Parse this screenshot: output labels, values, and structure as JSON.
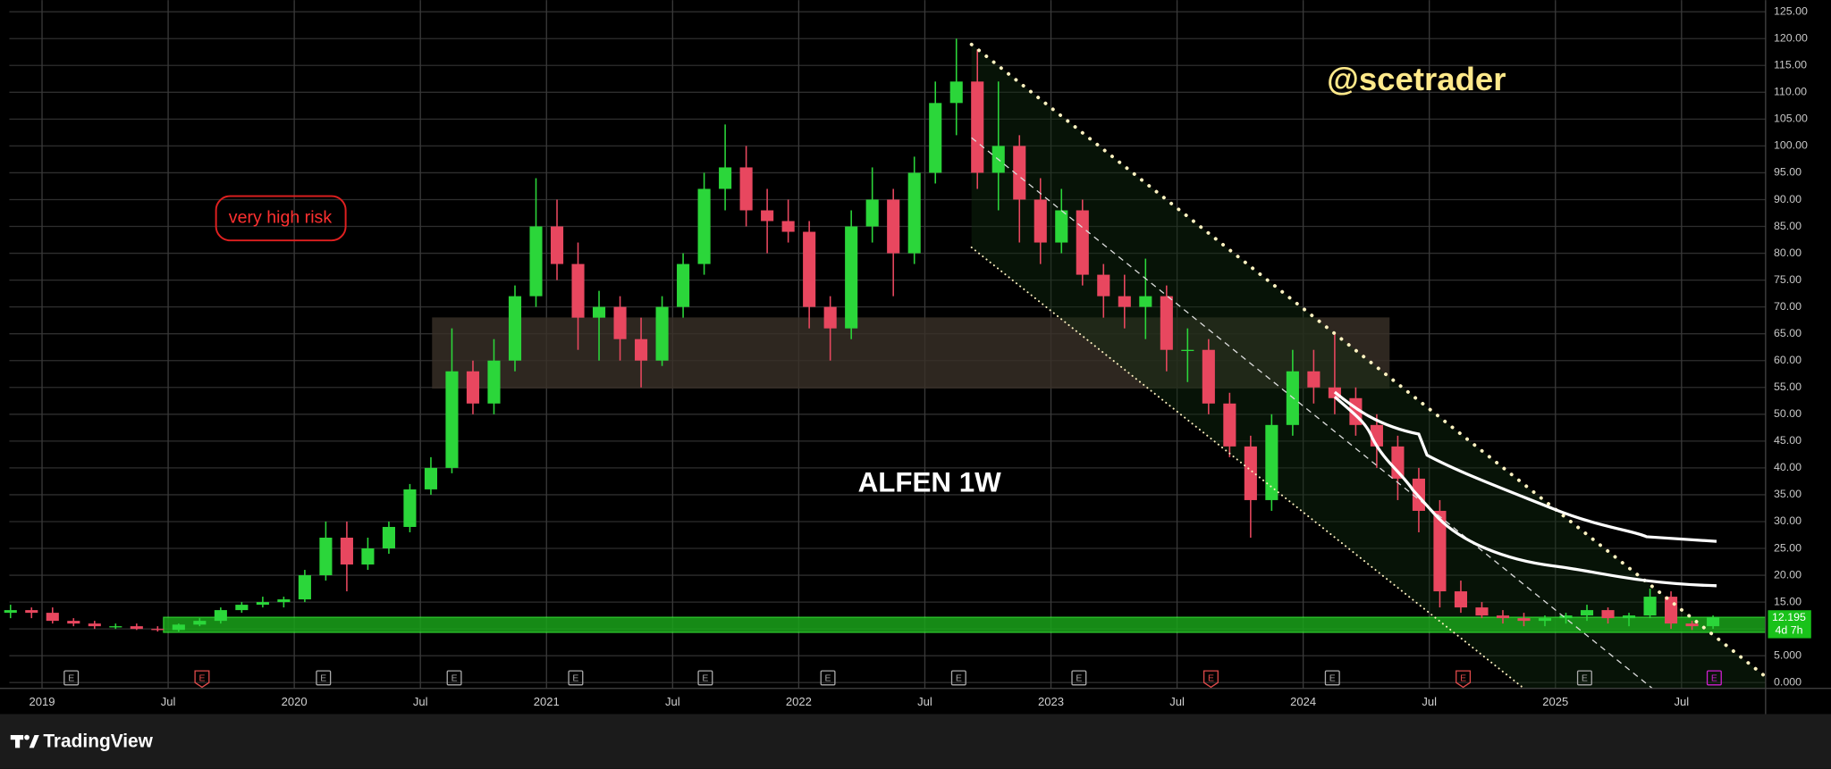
{
  "chart_data": {
    "type": "candlestick",
    "title": "ALFEN 1W",
    "watermark": "@scetrader",
    "annotation": "very high risk",
    "x": [
      "2018-11",
      "2018-12",
      "2019-01",
      "2019-02",
      "2019-03",
      "2019-04",
      "2019-05",
      "2019-06",
      "2019-07",
      "2019-08",
      "2019-09",
      "2019-10",
      "2019-11",
      "2019-12",
      "2020-01",
      "2020-02",
      "2020-03",
      "2020-04",
      "2020-05",
      "2020-06",
      "2020-07",
      "2020-08",
      "2020-09",
      "2020-10",
      "2020-11",
      "2020-12",
      "2021-01",
      "2021-02",
      "2021-03",
      "2021-04",
      "2021-05",
      "2021-06",
      "2021-07",
      "2021-08",
      "2021-09",
      "2021-10",
      "2021-11",
      "2021-12",
      "2022-01",
      "2022-02",
      "2022-03",
      "2022-04",
      "2022-05",
      "2022-06",
      "2022-07",
      "2022-08",
      "2022-09",
      "2022-10",
      "2022-11",
      "2022-12",
      "2023-01",
      "2023-02",
      "2023-03",
      "2023-04",
      "2023-05",
      "2023-06",
      "2023-07",
      "2023-08",
      "2023-09",
      "2023-10",
      "2023-11",
      "2023-12",
      "2024-01",
      "2024-02",
      "2024-03",
      "2024-04",
      "2024-05",
      "2024-06",
      "2024-07",
      "2024-08",
      "2024-09",
      "2024-10",
      "2024-11",
      "2024-12",
      "2025-01",
      "2025-02",
      "2025-03",
      "2025-04",
      "2025-05",
      "2025-06",
      "2025-07",
      "2025-08"
    ],
    "open": [
      13,
      13.5,
      13,
      11.5,
      11,
      10.5,
      10.5,
      10,
      9.8,
      10.8,
      11.5,
      13.5,
      14.5,
      15,
      15.5,
      20,
      27,
      22,
      25,
      29,
      36,
      40,
      58,
      52,
      60,
      72,
      85,
      78,
      68,
      70,
      64,
      60,
      70,
      78,
      92,
      96,
      88,
      86,
      84,
      70,
      66,
      85,
      90,
      80,
      95,
      108,
      112,
      95,
      100,
      90,
      82,
      88,
      76,
      72,
      70,
      72,
      62,
      62,
      52,
      44,
      34,
      48,
      58,
      55,
      53,
      48,
      44,
      38,
      32,
      17,
      14,
      12.5,
      12,
      11.5,
      12,
      12.5,
      13.5,
      12,
      12.5,
      16,
      11,
      10.5
    ],
    "high": [
      14.5,
      14,
      14,
      12,
      11.5,
      11,
      11,
      10.5,
      11,
      12,
      14,
      15,
      16,
      16,
      21,
      30,
      30,
      27,
      30,
      37,
      42,
      66,
      60,
      64,
      74,
      94,
      90,
      82,
      73,
      72,
      68,
      72,
      80,
      95,
      104,
      100,
      92,
      90,
      86,
      72,
      88,
      96,
      92,
      98,
      112,
      120,
      118,
      112,
      102,
      94,
      92,
      90,
      78,
      76,
      79,
      74,
      66,
      64,
      54,
      46,
      50,
      62,
      62,
      65,
      55,
      50,
      46,
      40,
      34,
      19,
      15,
      13.5,
      13,
      12.5,
      13,
      14.5,
      14,
      13,
      17.5,
      17,
      11.5,
      12.5
    ],
    "low": [
      12,
      12,
      11,
      10.5,
      10,
      10,
      9.8,
      9.5,
      9.5,
      10.5,
      11,
      13,
      14,
      14,
      15,
      19,
      17,
      21,
      24,
      28,
      35,
      39,
      50,
      50,
      58,
      70,
      75,
      62,
      60,
      60,
      55,
      59,
      68,
      76,
      88,
      85,
      80,
      82,
      66,
      60,
      64,
      82,
      72,
      78,
      93,
      102,
      92,
      88,
      82,
      78,
      80,
      74,
      68,
      66,
      64,
      58,
      56,
      50,
      42,
      27,
      32,
      46,
      52,
      50,
      46,
      40,
      34,
      28,
      14,
      13,
      12,
      11,
      10.5,
      10.5,
      11,
      11.5,
      11,
      10.5,
      12,
      10,
      9.8,
      10
    ],
    "close": [
      13.5,
      13,
      11.5,
      11,
      10.5,
      10.5,
      10,
      9.8,
      10.8,
      11.5,
      13.5,
      14.5,
      15,
      15.5,
      20,
      27,
      22,
      25,
      29,
      36,
      40,
      58,
      52,
      60,
      72,
      85,
      78,
      68,
      70,
      64,
      60,
      70,
      78,
      92,
      96,
      88,
      86,
      84,
      70,
      66,
      85,
      90,
      80,
      95,
      108,
      112,
      95,
      100,
      90,
      82,
      88,
      76,
      72,
      70,
      72,
      62,
      62,
      52,
      44,
      34,
      48,
      58,
      55,
      53,
      48,
      44,
      38,
      32,
      17,
      14,
      12.5,
      12,
      11.5,
      12,
      12.5,
      13.5,
      12,
      12.5,
      16,
      11,
      10.5,
      12.195
    ],
    "up_color": "#2bd63a",
    "down_color": "#e8475f",
    "xlim": [
      "2018-11",
      "2025-11"
    ],
    "xticks": [
      {
        "value": "2019-01",
        "label": "2019"
      },
      {
        "value": "2019-07",
        "label": "Jul"
      },
      {
        "value": "2020-01",
        "label": "2020"
      },
      {
        "value": "2020-07",
        "label": "Jul"
      },
      {
        "value": "2021-01",
        "label": "2021"
      },
      {
        "value": "2021-07",
        "label": "Jul"
      },
      {
        "value": "2022-01",
        "label": "2022"
      },
      {
        "value": "2022-07",
        "label": "Jul"
      },
      {
        "value": "2023-01",
        "label": "2023"
      },
      {
        "value": "2023-07",
        "label": "Jul"
      },
      {
        "value": "2024-01",
        "label": "2024"
      },
      {
        "value": "2024-07",
        "label": "Jul"
      },
      {
        "value": "2025-01",
        "label": "2025"
      },
      {
        "value": "2025-07",
        "label": "Jul"
      }
    ],
    "ylim": [
      0,
      125
    ],
    "yticks": [
      {
        "value": 0,
        "label": "0.000"
      },
      {
        "value": 5,
        "label": "5.000"
      },
      {
        "value": 10,
        "label": "10.00"
      },
      {
        "value": 15,
        "label": "15.00"
      },
      {
        "value": 20,
        "label": "20.00"
      },
      {
        "value": 25,
        "label": "25.00"
      },
      {
        "value": 30,
        "label": "30.00"
      },
      {
        "value": 35,
        "label": "35.00"
      },
      {
        "value": 40,
        "label": "40.00"
      },
      {
        "value": 45,
        "label": "45.00"
      },
      {
        "value": 50,
        "label": "50.00"
      },
      {
        "value": 55,
        "label": "55.00"
      },
      {
        "value": 60,
        "label": "60.00"
      },
      {
        "value": 65,
        "label": "65.00"
      },
      {
        "value": 70,
        "label": "70.00"
      },
      {
        "value": 75,
        "label": "75.00"
      },
      {
        "value": 80,
        "label": "80.00"
      },
      {
        "value": 85,
        "label": "85.00"
      },
      {
        "value": 90,
        "label": "90.00"
      },
      {
        "value": 95,
        "label": "95.00"
      },
      {
        "value": 100,
        "label": "100.00"
      },
      {
        "value": 105,
        "label": "105.00"
      },
      {
        "value": 110,
        "label": "110.00"
      },
      {
        "value": 115,
        "label": "115.00"
      },
      {
        "value": 120,
        "label": "120.00"
      },
      {
        "value": 125,
        "label": "125.00"
      }
    ],
    "grid": true,
    "last_price": 12.195,
    "countdown": "4d 7h"
  },
  "event_markers": [
    "E",
    "E",
    "E",
    "E",
    "E",
    "E",
    "E",
    "E",
    "E",
    "E",
    "E",
    "E",
    "E",
    "E"
  ],
  "footer": {
    "brand": "TradingView"
  }
}
